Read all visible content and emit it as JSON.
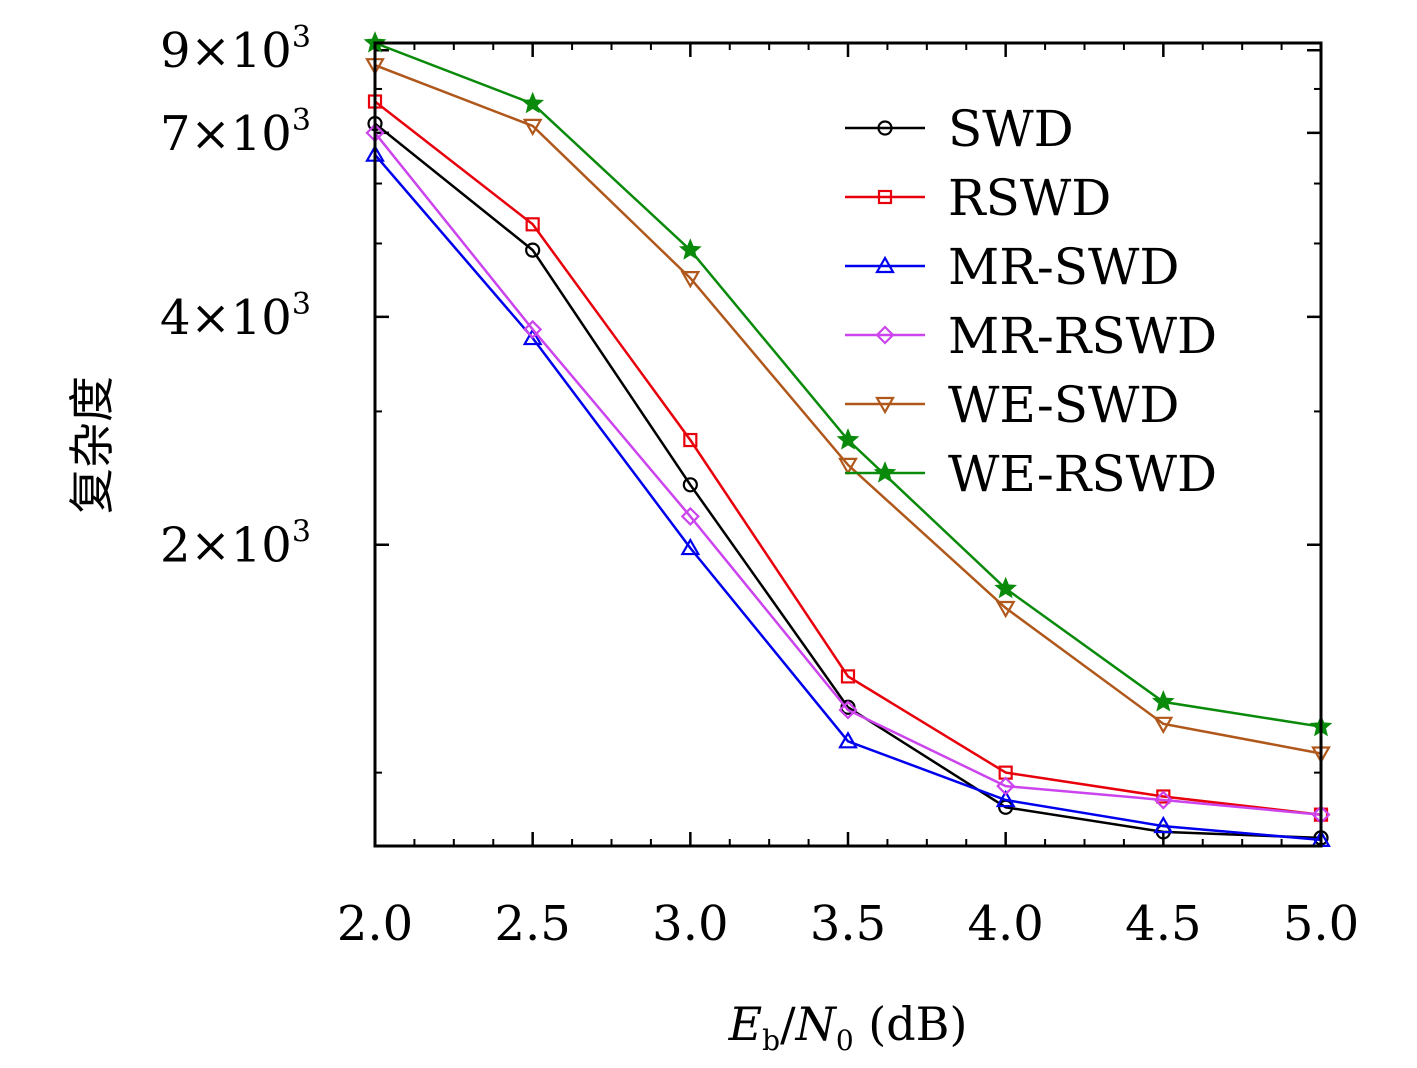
{
  "chart_data": {
    "type": "line",
    "x": [
      2.0,
      2.5,
      3.0,
      3.5,
      4.0,
      4.5,
      5.0
    ],
    "x_tick_labels": [
      "2.0",
      "2.5",
      "3.0",
      "3.5",
      "4.0",
      "4.5",
      "5.0"
    ],
    "xlim": [
      2.0,
      5.0
    ],
    "y_scale": "log",
    "ylim": [
      800,
      9200
    ],
    "y_ticks": [
      {
        "value": 2000,
        "mantissa": "2",
        "times": "×",
        "base": "10",
        "exponent": "3"
      },
      {
        "value": 4000,
        "mantissa": "4",
        "times": "×",
        "base": "10",
        "exponent": "3"
      },
      {
        "value": 7000,
        "mantissa": "7",
        "times": "×",
        "base": "10",
        "exponent": "3"
      },
      {
        "value": 9000,
        "mantissa": "9",
        "times": "×",
        "base": "10",
        "exponent": "3"
      }
    ],
    "xlabel": {
      "E": "E",
      "b": "b",
      "slash": "/",
      "N": "N",
      "zero": "0",
      "unit": " (dB)"
    },
    "ylabel": "复杂度",
    "legend_position": "top-right",
    "grid": false,
    "series": [
      {
        "name": "SWD",
        "color": "#000000",
        "marker": "circle",
        "values": [
          7200,
          4900,
          2400,
          1220,
          900,
          835,
          820
        ]
      },
      {
        "name": "RSWD",
        "color": "#e8000b",
        "marker": "square",
        "values": [
          7700,
          5300,
          2750,
          1340,
          1000,
          930,
          880
        ]
      },
      {
        "name": "MR-SWD",
        "color": "#0000ee",
        "marker": "triangle-up",
        "values": [
          6550,
          3750,
          1980,
          1100,
          920,
          850,
          815
        ]
      },
      {
        "name": "MR-RSWD",
        "color": "#cc44ee",
        "marker": "diamond",
        "values": [
          7000,
          3850,
          2180,
          1210,
          960,
          920,
          880
        ]
      },
      {
        "name": "WE-SWD",
        "color": "#b0581c",
        "marker": "triangle-down",
        "values": [
          8600,
          7150,
          4500,
          2550,
          1650,
          1160,
          1060
        ]
      },
      {
        "name": "WE-RSWD",
        "color": "#0a8a0a",
        "marker": "star",
        "values": [
          9200,
          7650,
          4900,
          2750,
          1750,
          1240,
          1150
        ]
      }
    ]
  }
}
